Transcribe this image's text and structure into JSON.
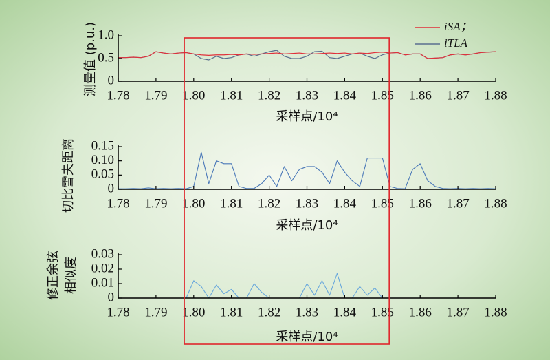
{
  "chart_data": [
    {
      "type": "line",
      "ylabel": "测量值 (p.u.)",
      "xlabel": "采样点/10⁴",
      "x": [
        1.78,
        1.782,
        1.784,
        1.786,
        1.788,
        1.79,
        1.792,
        1.794,
        1.796,
        1.798,
        1.8,
        1.802,
        1.804,
        1.806,
        1.808,
        1.81,
        1.812,
        1.814,
        1.816,
        1.818,
        1.82,
        1.822,
        1.824,
        1.826,
        1.828,
        1.83,
        1.832,
        1.834,
        1.836,
        1.838,
        1.84,
        1.842,
        1.844,
        1.846,
        1.848,
        1.85,
        1.852,
        1.854,
        1.856,
        1.858,
        1.86,
        1.862,
        1.864,
        1.866,
        1.868,
        1.87,
        1.872,
        1.874,
        1.876,
        1.878,
        1.88
      ],
      "series": [
        {
          "name": "iTLA",
          "color": "#5a6f8f",
          "values": [
            0.52,
            0.52,
            0.53,
            0.52,
            0.55,
            0.65,
            0.62,
            0.6,
            0.62,
            0.63,
            0.6,
            0.5,
            0.47,
            0.55,
            0.5,
            0.52,
            0.58,
            0.6,
            0.55,
            0.6,
            0.65,
            0.68,
            0.55,
            0.5,
            0.5,
            0.55,
            0.65,
            0.66,
            0.52,
            0.5,
            0.55,
            0.6,
            0.62,
            0.55,
            0.5,
            0.58,
            0.62,
            0.63,
            0.58,
            0.6,
            0.6,
            0.5,
            0.51,
            0.52,
            0.58,
            0.6,
            0.58,
            0.6,
            0.63,
            0.64,
            0.65
          ]
        },
        {
          "name": "iSA；",
          "color": "#e0303a",
          "values": [
            0.52,
            0.52,
            0.53,
            0.52,
            0.55,
            0.65,
            0.62,
            0.6,
            0.62,
            0.63,
            0.6,
            0.58,
            0.57,
            0.58,
            0.58,
            0.59,
            0.58,
            0.6,
            0.59,
            0.6,
            0.61,
            0.62,
            0.6,
            0.61,
            0.62,
            0.6,
            0.6,
            0.61,
            0.62,
            0.61,
            0.62,
            0.6,
            0.62,
            0.61,
            0.63,
            0.64,
            0.62,
            0.63,
            0.58,
            0.6,
            0.6,
            0.5,
            0.51,
            0.52,
            0.58,
            0.6,
            0.58,
            0.6,
            0.63,
            0.64,
            0.65
          ]
        }
      ],
      "xlim": [
        1.78,
        1.88
      ],
      "xticks": [
        1.78,
        1.79,
        {
          "value": 1.8,
          "label": "1.80"
        },
        1.81,
        1.82,
        1.83,
        1.84,
        1.85,
        1.86,
        1.87,
        1.88
      ],
      "ylim": [
        0,
        1
      ],
      "yticks": [
        0,
        0.5,
        {
          "value": 1,
          "label": "1.0"
        }
      ],
      "legend": "upper right"
    },
    {
      "type": "line",
      "ylabel": "切比雪夫距离",
      "xlabel": "采样点/10⁴",
      "x": [
        1.78,
        1.782,
        1.784,
        1.786,
        1.788,
        1.79,
        1.792,
        1.794,
        1.796,
        1.798,
        1.8,
        1.802,
        1.804,
        1.806,
        1.808,
        1.81,
        1.812,
        1.814,
        1.816,
        1.818,
        1.82,
        1.822,
        1.824,
        1.826,
        1.828,
        1.83,
        1.832,
        1.834,
        1.836,
        1.838,
        1.84,
        1.842,
        1.844,
        1.846,
        1.848,
        1.85,
        1.852,
        1.854,
        1.856,
        1.858,
        1.86,
        1.862,
        1.864,
        1.866,
        1.868,
        1.87,
        1.872,
        1.874,
        1.876,
        1.878,
        1.88
      ],
      "color": "#4a78b8",
      "values": [
        0.002,
        0.002,
        0.003,
        0.002,
        0.005,
        0.002,
        0.003,
        0.002,
        0.003,
        0.002,
        0.01,
        0.13,
        0.02,
        0.1,
        0.09,
        0.09,
        0.01,
        0.003,
        0.003,
        0.02,
        0.05,
        0.01,
        0.08,
        0.03,
        0.07,
        0.08,
        0.08,
        0.06,
        0.02,
        0.1,
        0.06,
        0.03,
        0.01,
        0.11,
        0.11,
        0.11,
        0.01,
        0.003,
        0.002,
        0.07,
        0.09,
        0.03,
        0.01,
        0.003,
        0.002,
        0.003,
        0.002,
        0.003,
        0.002,
        0.003,
        0.002
      ],
      "xlim": [
        1.78,
        1.88
      ],
      "xticks": [
        1.78,
        1.79,
        {
          "value": 1.8,
          "label": "1.80"
        },
        1.81,
        1.82,
        1.83,
        1.84,
        1.85,
        1.86,
        1.87,
        1.88
      ],
      "ylim": [
        0,
        0.15
      ],
      "yticks": [
        0,
        0.05,
        {
          "value": 0.1,
          "label": "0.10"
        },
        0.15
      ]
    },
    {
      "type": "line",
      "ylabel": [
        "修正余弦",
        "相似度"
      ],
      "xlabel": "采样点/10⁴",
      "x": [
        1.78,
        1.782,
        1.784,
        1.786,
        1.788,
        1.79,
        1.792,
        1.794,
        1.796,
        1.798,
        1.8,
        1.802,
        1.804,
        1.806,
        1.808,
        1.81,
        1.812,
        1.814,
        1.816,
        1.818,
        1.82,
        1.822,
        1.824,
        1.826,
        1.828,
        1.83,
        1.832,
        1.834,
        1.836,
        1.838,
        1.84,
        1.842,
        1.844,
        1.846,
        1.848,
        1.85,
        1.852,
        1.854,
        1.856,
        1.858,
        1.86,
        1.862,
        1.864,
        1.866,
        1.868,
        1.87,
        1.872,
        1.874,
        1.876,
        1.878,
        1.88
      ],
      "color": "#6aa8dc",
      "values": [
        0,
        0,
        0,
        0,
        0,
        0,
        0,
        0,
        0,
        0,
        0.012,
        0.008,
        0,
        0.009,
        0.003,
        0.006,
        0,
        0,
        0.01,
        0.004,
        0,
        0,
        0,
        0,
        0,
        0.01,
        0.002,
        0.012,
        0.002,
        0.017,
        0,
        0,
        0.008,
        0.002,
        0.007,
        0,
        0,
        0,
        0,
        0,
        0,
        0,
        0,
        0,
        0,
        0,
        0,
        0,
        0,
        0,
        0
      ],
      "xlim": [
        1.78,
        1.88
      ],
      "xticks": [
        1.78,
        1.79,
        {
          "value": 1.8,
          "label": "1.80"
        },
        1.81,
        1.82,
        1.83,
        1.84,
        1.85,
        1.86,
        1.87,
        1.88
      ],
      "ylim": [
        0,
        0.03
      ],
      "yticks": [
        0,
        0.01,
        0.02,
        0.03
      ]
    }
  ],
  "highlight": {
    "xlim": [
      1.7975,
      1.8518
    ],
    "color": "#e0262c"
  }
}
